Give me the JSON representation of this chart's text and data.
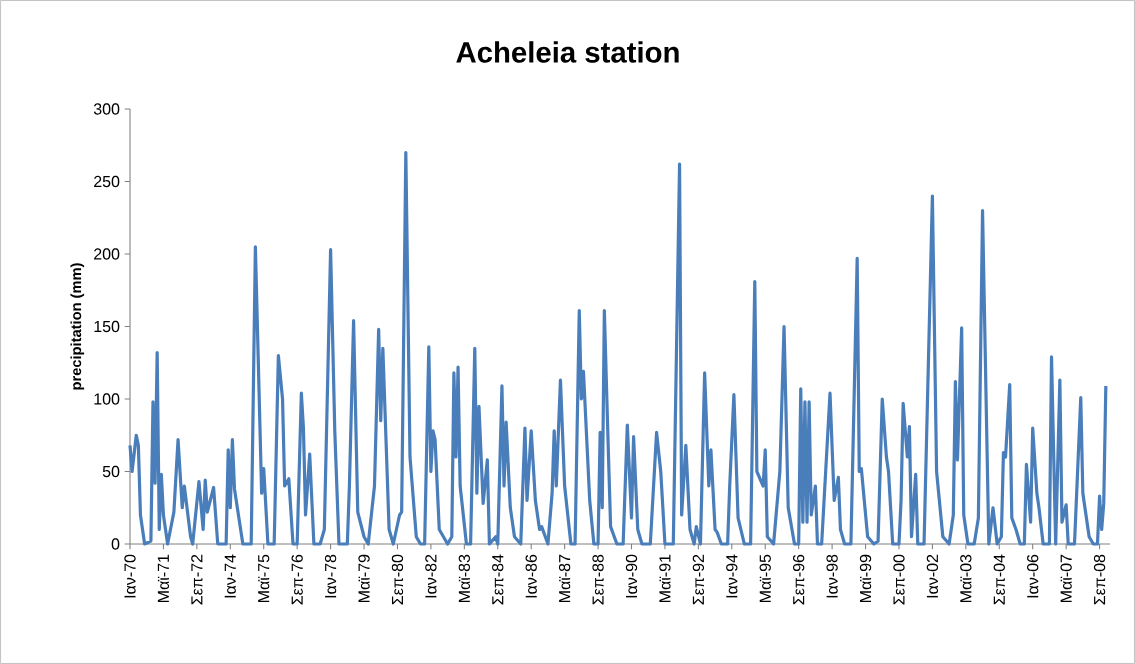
{
  "chart_data": {
    "type": "line",
    "title": "Acheleia station",
    "ylabel": "precipitation (mm)",
    "color": "#4a7ebb",
    "marker": "none",
    "line_style": "solid",
    "grid": false,
    "xlim": [
      "1970-01",
      "2009-02"
    ],
    "ylim": [
      0,
      300
    ],
    "yticks": [
      0,
      50,
      100,
      150,
      200,
      250,
      300
    ],
    "xticks": [
      {
        "value": "1970-01",
        "label": "Ιαν-70"
      },
      {
        "value": "1971-05",
        "label": "Μαϊ-71"
      },
      {
        "value": "1972-09",
        "label": "Σεπ-72"
      },
      {
        "value": "1974-01",
        "label": "Ιαν-74"
      },
      {
        "value": "1975-05",
        "label": "Μαϊ-75"
      },
      {
        "value": "1976-09",
        "label": "Σεπ-76"
      },
      {
        "value": "1978-01",
        "label": "Ιαν-78"
      },
      {
        "value": "1979-05",
        "label": "Μαϊ-79"
      },
      {
        "value": "1980-09",
        "label": "Σεπ-80"
      },
      {
        "value": "1982-01",
        "label": "Ιαν-82"
      },
      {
        "value": "1983-05",
        "label": "Μαϊ-83"
      },
      {
        "value": "1984-09",
        "label": "Σεπ-84"
      },
      {
        "value": "1986-01",
        "label": "Ιαν-86"
      },
      {
        "value": "1987-05",
        "label": "Μαϊ-87"
      },
      {
        "value": "1988-09",
        "label": "Σεπ-88"
      },
      {
        "value": "1990-01",
        "label": "Ιαν-90"
      },
      {
        "value": "1991-05",
        "label": "Μαϊ-91"
      },
      {
        "value": "1992-09",
        "label": "Σεπ-92"
      },
      {
        "value": "1994-01",
        "label": "Ιαν-94"
      },
      {
        "value": "1995-05",
        "label": "Μαϊ-95"
      },
      {
        "value": "1996-09",
        "label": "Σεπ-96"
      },
      {
        "value": "1998-01",
        "label": "Ιαν-98"
      },
      {
        "value": "1999-05",
        "label": "Μαϊ-99"
      },
      {
        "value": "2000-09",
        "label": "Σεπ-00"
      },
      {
        "value": "2002-01",
        "label": "Ιαν-02"
      },
      {
        "value": "2003-05",
        "label": "Μαϊ-03"
      },
      {
        "value": "2004-09",
        "label": "Σεπ-04"
      },
      {
        "value": "2006-01",
        "label": "Ιαν-06"
      },
      {
        "value": "2007-05",
        "label": "Μαϊ-07"
      },
      {
        "value": "2008-09",
        "label": "Σεπ-08"
      }
    ],
    "x": [
      "1970-01",
      "1970-02",
      "1970-04",
      "1970-05",
      "1970-06",
      "1970-08",
      "1970-11",
      "1970-12",
      "1971-01",
      "1971-02",
      "1971-03",
      "1971-04",
      "1971-05",
      "1971-07",
      "1971-10",
      "1971-12",
      "1972-02",
      "1972-03",
      "1972-06",
      "1972-07",
      "1972-10",
      "1972-12",
      "1973-01",
      "1973-02",
      "1973-05",
      "1973-07",
      "1973-11",
      "1973-12",
      "1974-01",
      "1974-02",
      "1974-03",
      "1974-07",
      "1974-11",
      "1975-01",
      "1975-04",
      "1975-05",
      "1975-07",
      "1975-10",
      "1975-12",
      "1976-02",
      "1976-03",
      "1976-05",
      "1976-07",
      "1976-09",
      "1976-11",
      "1976-12",
      "1977-01",
      "1977-03",
      "1977-05",
      "1977-08",
      "1977-10",
      "1978-01",
      "1978-03",
      "1978-05",
      "1978-09",
      "1978-10",
      "1978-12",
      "1979-02",
      "1979-05",
      "1979-07",
      "1979-10",
      "1979-12",
      "1980-01",
      "1980-02",
      "1980-05",
      "1980-07",
      "1980-10",
      "1980-11",
      "1981-01",
      "1981-03",
      "1981-06",
      "1981-08",
      "1981-10",
      "1981-12",
      "1982-01",
      "1982-02",
      "1982-03",
      "1982-05",
      "1982-09",
      "1982-11",
      "1982-12",
      "1983-01",
      "1983-02",
      "1983-03",
      "1983-06",
      "1983-08",
      "1983-10",
      "1983-11",
      "1983-12",
      "1984-02",
      "1984-04",
      "1984-05",
      "1984-08",
      "1984-09",
      "1984-11",
      "1984-12",
      "1985-01",
      "1985-03",
      "1985-05",
      "1985-08",
      "1985-10",
      "1985-11",
      "1986-01",
      "1986-03",
      "1986-05",
      "1986-06",
      "1986-09",
      "1986-11",
      "1986-12",
      "1987-01",
      "1987-03",
      "1987-05",
      "1987-08",
      "1987-10",
      "1987-12",
      "1988-01",
      "1988-02",
      "1988-05",
      "1988-07",
      "1988-09",
      "1988-10",
      "1988-11",
      "1988-12",
      "1989-02",
      "1989-03",
      "1989-06",
      "1989-09",
      "1989-11",
      "1990-01",
      "1990-02",
      "1990-04",
      "1990-06",
      "1990-10",
      "1991-01",
      "1991-03",
      "1991-05",
      "1991-09",
      "1991-12",
      "1992-01",
      "1992-03",
      "1992-05",
      "1992-07",
      "1992-08",
      "1992-10",
      "1992-12",
      "1993-02",
      "1993-03",
      "1993-05",
      "1993-06",
      "1993-08",
      "1993-11",
      "1993-12",
      "1994-02",
      "1994-04",
      "1994-07",
      "1994-10",
      "1994-12",
      "1995-01",
      "1995-04",
      "1995-05",
      "1995-06",
      "1995-09",
      "1995-12",
      "1996-02",
      "1996-04",
      "1996-07",
      "1996-09",
      "1996-10",
      "1996-11",
      "1996-12",
      "1997-01",
      "1997-02",
      "1997-03",
      "1997-05",
      "1997-06",
      "1997-08",
      "1997-12",
      "1998-02",
      "1998-04",
      "1998-05",
      "1998-07",
      "1998-10",
      "1999-01",
      "1999-02",
      "1999-03",
      "1999-06",
      "1999-09",
      "1999-11",
      "2000-01",
      "2000-03",
      "2000-04",
      "2000-06",
      "2000-09",
      "2000-10",
      "2000-11",
      "2001-01",
      "2001-02",
      "2001-03",
      "2001-05",
      "2001-06",
      "2001-09",
      "2002-01",
      "2002-03",
      "2002-04",
      "2002-06",
      "2002-09",
      "2002-11",
      "2002-12",
      "2003-01",
      "2003-03",
      "2003-04",
      "2003-06",
      "2003-09",
      "2003-11",
      "2004-01",
      "2004-04",
      "2004-06",
      "2004-08",
      "2004-10",
      "2004-11",
      "2004-12",
      "2005-02",
      "2005-03",
      "2005-05",
      "2005-07",
      "2005-09",
      "2005-10",
      "2005-12",
      "2006-01",
      "2006-03",
      "2006-04",
      "2006-06",
      "2006-09",
      "2006-10",
      "2006-12",
      "2007-02",
      "2007-03",
      "2007-05",
      "2007-06",
      "2007-09",
      "2007-12",
      "2008-01",
      "2008-04",
      "2008-06",
      "2008-08",
      "2008-09",
      "2008-10",
      "2008-11",
      "2008-12"
    ],
    "values": [
      68,
      50,
      75,
      68,
      20,
      0,
      2,
      98,
      42,
      132,
      10,
      48,
      20,
      0,
      22,
      72,
      25,
      40,
      5,
      0,
      43,
      10,
      44,
      22,
      39,
      0,
      0,
      65,
      25,
      72,
      38,
      0,
      0,
      205,
      35,
      52,
      0,
      0,
      130,
      100,
      40,
      45,
      0,
      0,
      104,
      80,
      20,
      62,
      0,
      0,
      10,
      203,
      78,
      0,
      0,
      40,
      154,
      22,
      5,
      0,
      40,
      148,
      85,
      135,
      10,
      0,
      20,
      22,
      270,
      60,
      5,
      0,
      0,
      136,
      50,
      78,
      72,
      10,
      0,
      5,
      118,
      60,
      122,
      40,
      0,
      0,
      135,
      35,
      95,
      28,
      58,
      0,
      5,
      0,
      109,
      40,
      84,
      25,
      5,
      0,
      80,
      30,
      78,
      30,
      10,
      12,
      0,
      35,
      78,
      40,
      113,
      40,
      0,
      0,
      161,
      100,
      119,
      30,
      0,
      0,
      77,
      25,
      161,
      60,
      12,
      0,
      0,
      82,
      18,
      74,
      10,
      0,
      0,
      77,
      50,
      0,
      0,
      262,
      20,
      68,
      10,
      0,
      12,
      0,
      118,
      40,
      65,
      10,
      8,
      0,
      0,
      40,
      103,
      18,
      0,
      0,
      181,
      50,
      40,
      65,
      5,
      0,
      50,
      150,
      25,
      0,
      0,
      107,
      15,
      98,
      15,
      98,
      20,
      40,
      0,
      0,
      104,
      30,
      46,
      10,
      0,
      0,
      197,
      50,
      52,
      5,
      0,
      2,
      100,
      60,
      50,
      0,
      0,
      30,
      97,
      60,
      81,
      5,
      48,
      0,
      0,
      240,
      50,
      35,
      5,
      0,
      20,
      112,
      58,
      149,
      20,
      0,
      0,
      18,
      230,
      0,
      25,
      0,
      5,
      63,
      60,
      110,
      18,
      10,
      0,
      0,
      55,
      15,
      80,
      35,
      25,
      0,
      0,
      129,
      0,
      113,
      15,
      27,
      0,
      0,
      101,
      35,
      5,
      0,
      0,
      33,
      10,
      28,
      109
    ]
  }
}
